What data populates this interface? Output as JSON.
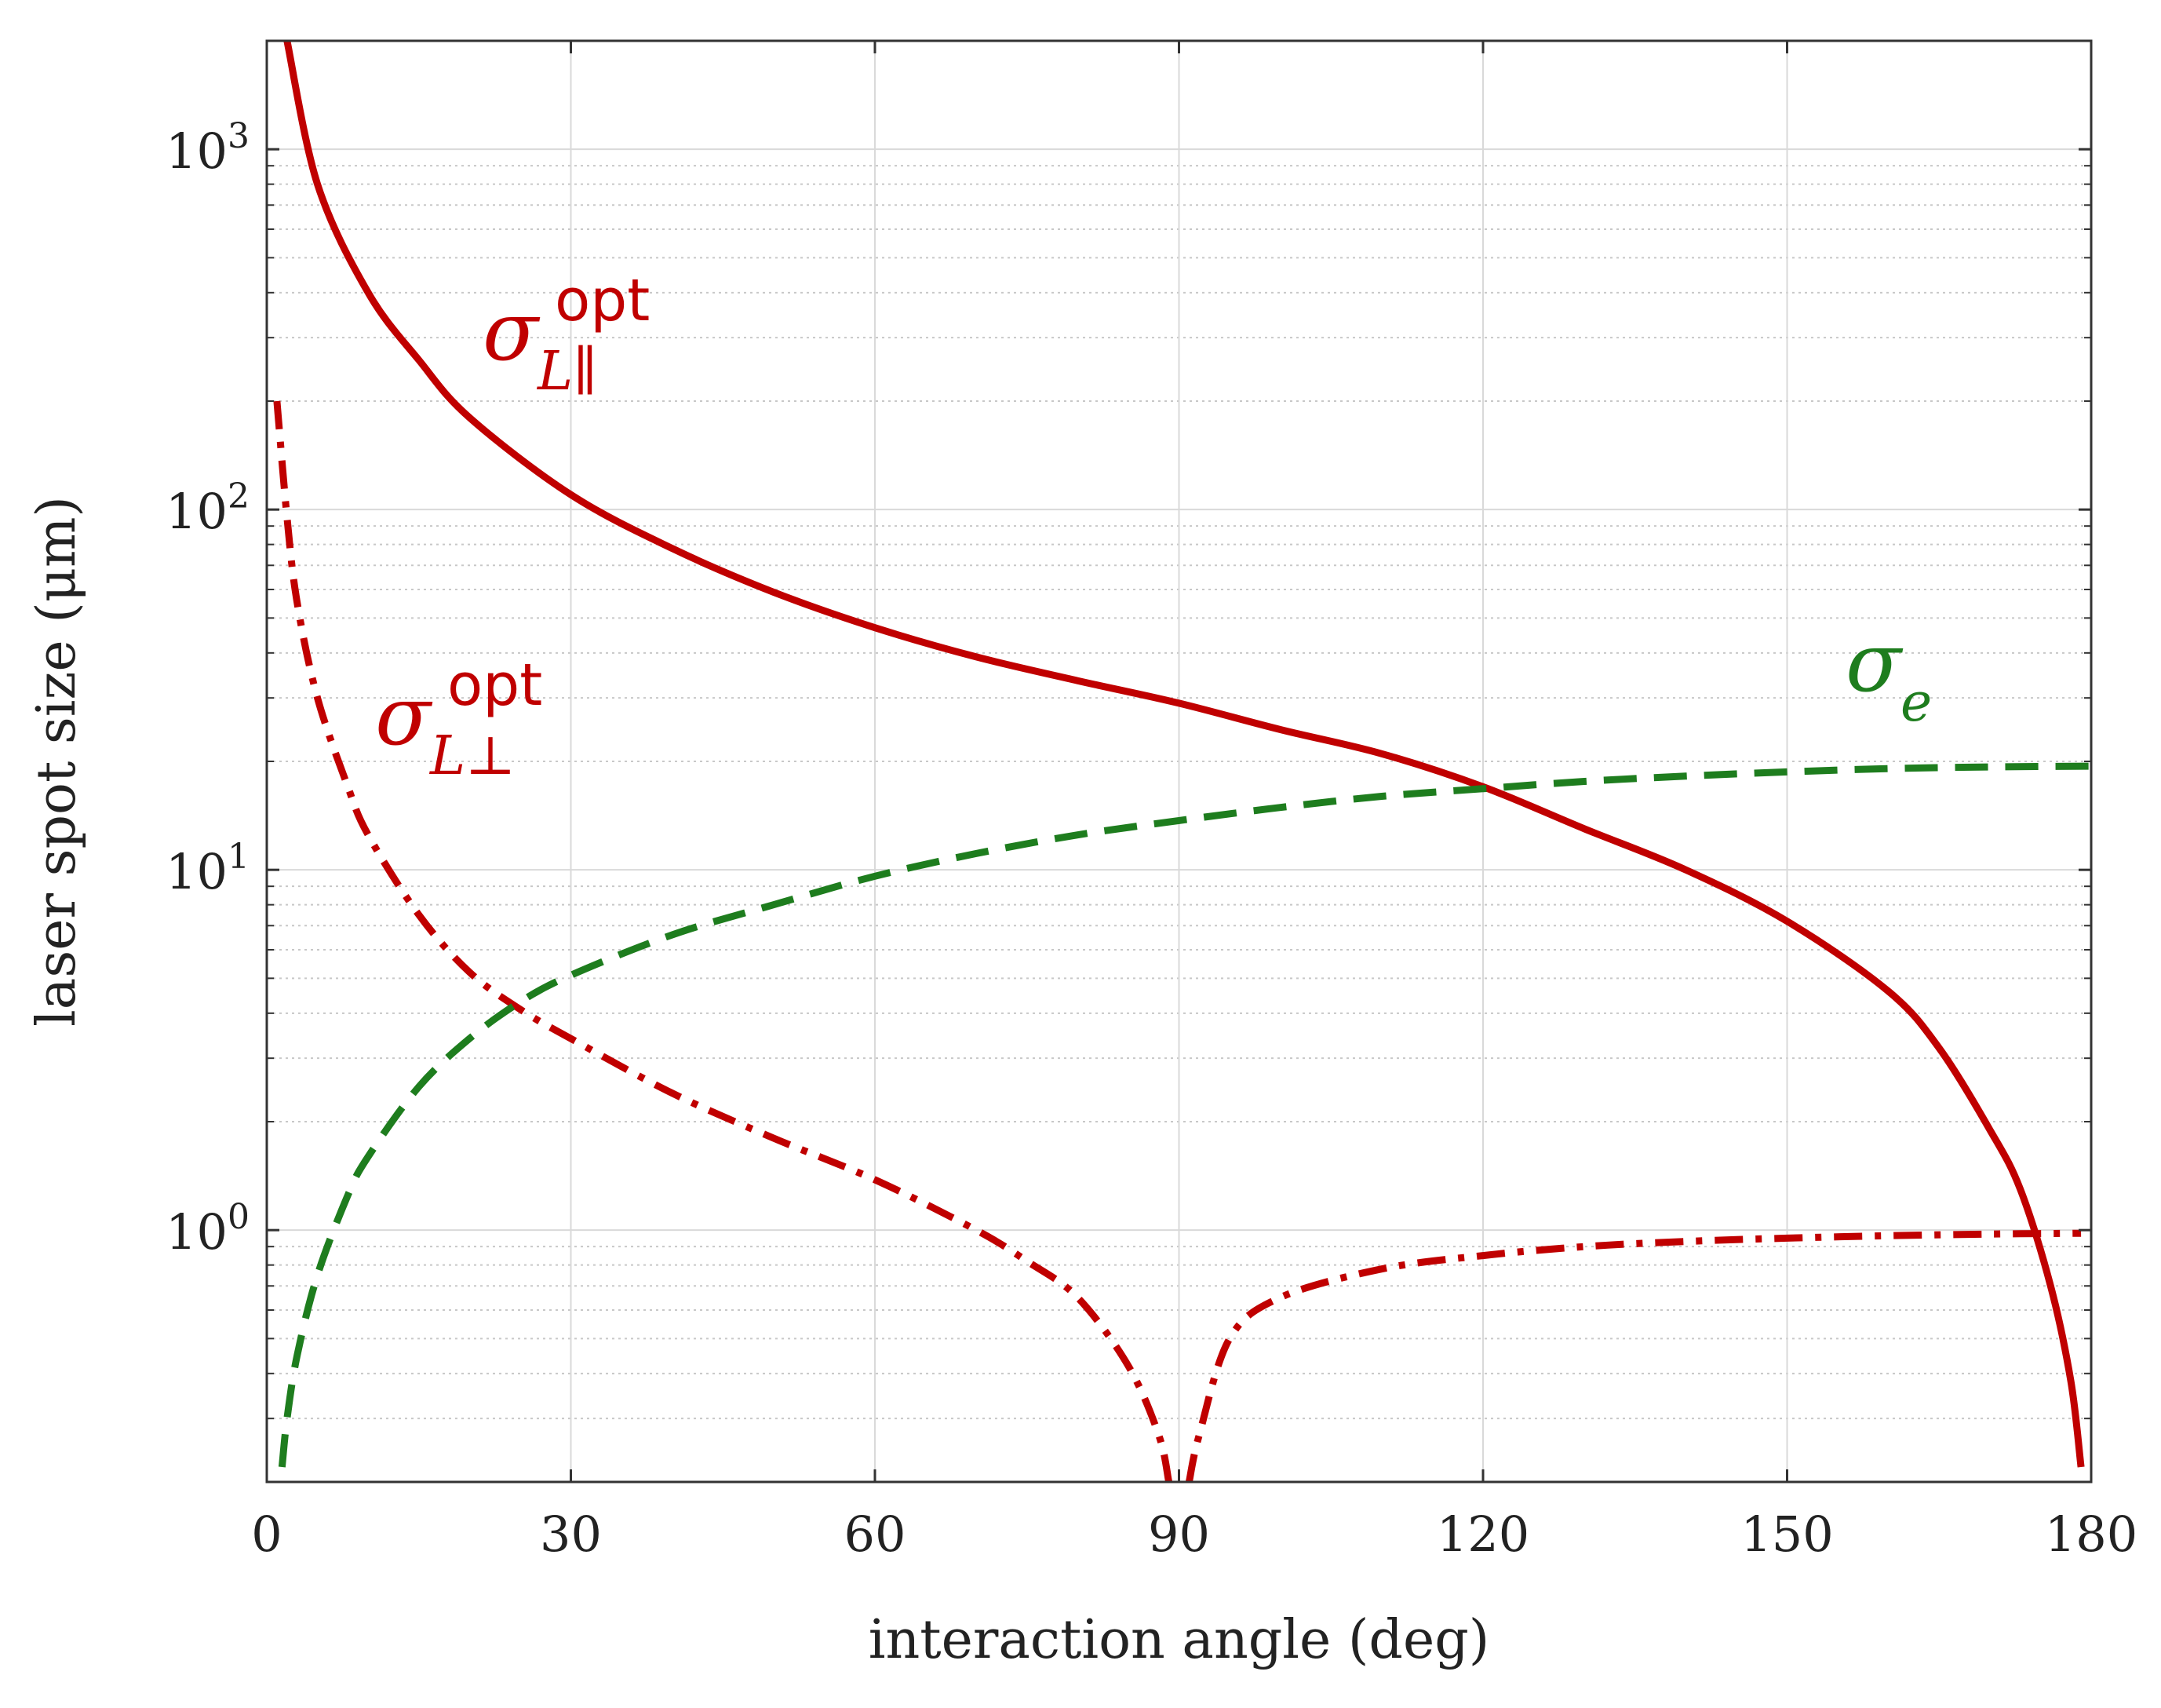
{
  "chart_data": {
    "type": "line",
    "title": "",
    "xlabel": "interaction angle (deg)",
    "ylabel": "laser spot size (μm)",
    "xscale": "linear",
    "yscale": "log",
    "xlim": [
      0,
      180
    ],
    "ylim": [
      0.2,
      2000
    ],
    "grid": true,
    "x_ticks": [
      0,
      30,
      60,
      90,
      120,
      150,
      180
    ],
    "x_tick_labels": [
      "0",
      "30",
      "60",
      "90",
      "120",
      "150",
      "180"
    ],
    "y_ticks": [
      1,
      10,
      100,
      1000
    ],
    "y_tick_labels": [
      {
        "base": "10",
        "exp": "0"
      },
      {
        "base": "10",
        "exp": "1"
      },
      {
        "base": "10",
        "exp": "2"
      },
      {
        "base": "10",
        "exp": "3"
      }
    ],
    "series": [
      {
        "name": "sigma_L_parallel_opt",
        "label": {
          "symbol": "σ",
          "sub": "L∥",
          "sup": "opt"
        },
        "style": "solid",
        "color": "#c00000",
        "x": [
          2,
          5,
          10,
          15,
          20,
          30,
          40,
          50,
          60,
          70,
          80,
          90,
          100,
          110,
          120,
          130,
          140,
          150,
          160,
          165,
          170,
          173,
          176,
          178,
          179
        ],
        "y": [
          2000,
          800,
          400,
          260,
          180,
          110,
          78,
          59,
          47,
          39,
          33.5,
          29,
          24.5,
          21,
          17,
          13,
          10,
          7.2,
          4.6,
          3.2,
          1.9,
          1.3,
          0.7,
          0.38,
          0.22
        ]
      },
      {
        "name": "sigma_L_perp_opt",
        "label": {
          "symbol": "σ",
          "sub": "L⊥",
          "sup": "opt"
        },
        "style": "dashdot",
        "color": "#c00000",
        "x": [
          1,
          2,
          3,
          5,
          8,
          10,
          15,
          20,
          25,
          30,
          40,
          50,
          60,
          70,
          75,
          80,
          85,
          88,
          89,
          91,
          92,
          95,
          100,
          110,
          120,
          130,
          140,
          150,
          160,
          170,
          179
        ],
        "y": [
          200,
          95,
          55,
          30,
          17,
          12.5,
          7.5,
          5.2,
          4.1,
          3.4,
          2.4,
          1.8,
          1.38,
          1.0,
          0.82,
          0.65,
          0.42,
          0.27,
          0.2,
          0.2,
          0.27,
          0.5,
          0.65,
          0.78,
          0.85,
          0.9,
          0.93,
          0.95,
          0.965,
          0.975,
          0.98
        ]
      },
      {
        "name": "sigma_e",
        "label": {
          "symbol": "σ",
          "sub": "e",
          "sup": ""
        },
        "style": "dashed",
        "color": "#1e7d1e",
        "x": [
          1.5,
          2,
          3,
          5,
          8,
          10,
          15,
          20,
          25,
          30,
          40,
          50,
          60,
          70,
          80,
          90,
          100,
          110,
          120,
          130,
          140,
          150,
          160,
          170,
          180
        ],
        "y": [
          0.22,
          0.3,
          0.45,
          0.75,
          1.25,
          1.6,
          2.5,
          3.4,
          4.3,
          5.1,
          6.6,
          8.0,
          9.6,
          11.1,
          12.5,
          13.7,
          14.9,
          16.0,
          16.8,
          17.6,
          18.2,
          18.7,
          19.1,
          19.3,
          19.4
        ]
      }
    ]
  }
}
